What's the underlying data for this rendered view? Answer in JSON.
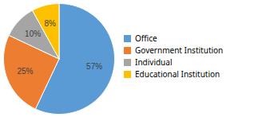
{
  "chart_data": {
    "type": "pie",
    "categories": [
      "Office",
      "Government Institution",
      "Individual",
      "Educational Institution"
    ],
    "values": [
      57,
      25,
      10,
      8
    ],
    "value_labels": [
      "57%",
      "25%",
      "10%",
      "8%"
    ],
    "colors": [
      "#5B9BD5",
      "#ED7D31",
      "#A5A5A5",
      "#FFC000"
    ],
    "data_labels": true,
    "legend": "right"
  }
}
